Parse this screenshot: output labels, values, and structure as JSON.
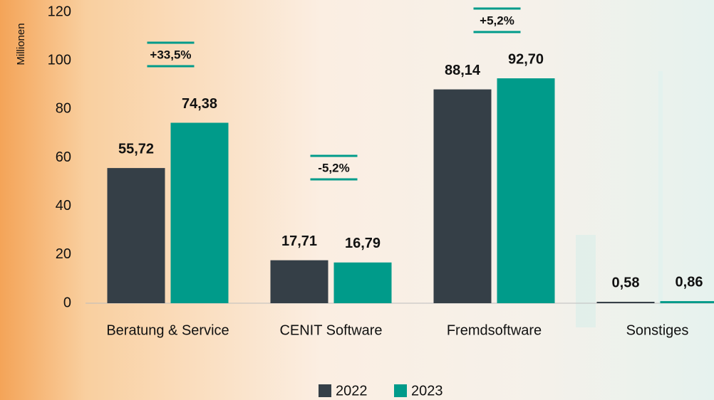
{
  "chart_data": {
    "type": "bar",
    "y_label": "Millionen",
    "categories": [
      "Beratung & Service",
      "CENIT Software",
      "Fremdsoftware",
      "Sonstiges"
    ],
    "series": [
      {
        "name": "2022",
        "color": "#353f47",
        "values": [
          55.72,
          17.71,
          88.14,
          0.58
        ],
        "value_labels": [
          "55,72",
          "17,71",
          "88,14",
          "0,58"
        ]
      },
      {
        "name": "2023",
        "color": "#009b8a",
        "values": [
          74.38,
          16.79,
          92.7,
          0.86
        ],
        "value_labels": [
          "74,38",
          "16,79",
          "92,70",
          "0,86"
        ]
      }
    ],
    "annotations": [
      {
        "text": "+33,5%",
        "category": "Beratung & Service"
      },
      {
        "text": "-5,2%",
        "category": "CENIT Software"
      },
      {
        "text": "+5,2%",
        "category": "Fremdsoftware"
      }
    ],
    "ylim": [
      0,
      120
    ],
    "yticks": [
      0,
      20,
      40,
      60,
      80,
      100,
      120
    ],
    "legend": "bottom"
  }
}
